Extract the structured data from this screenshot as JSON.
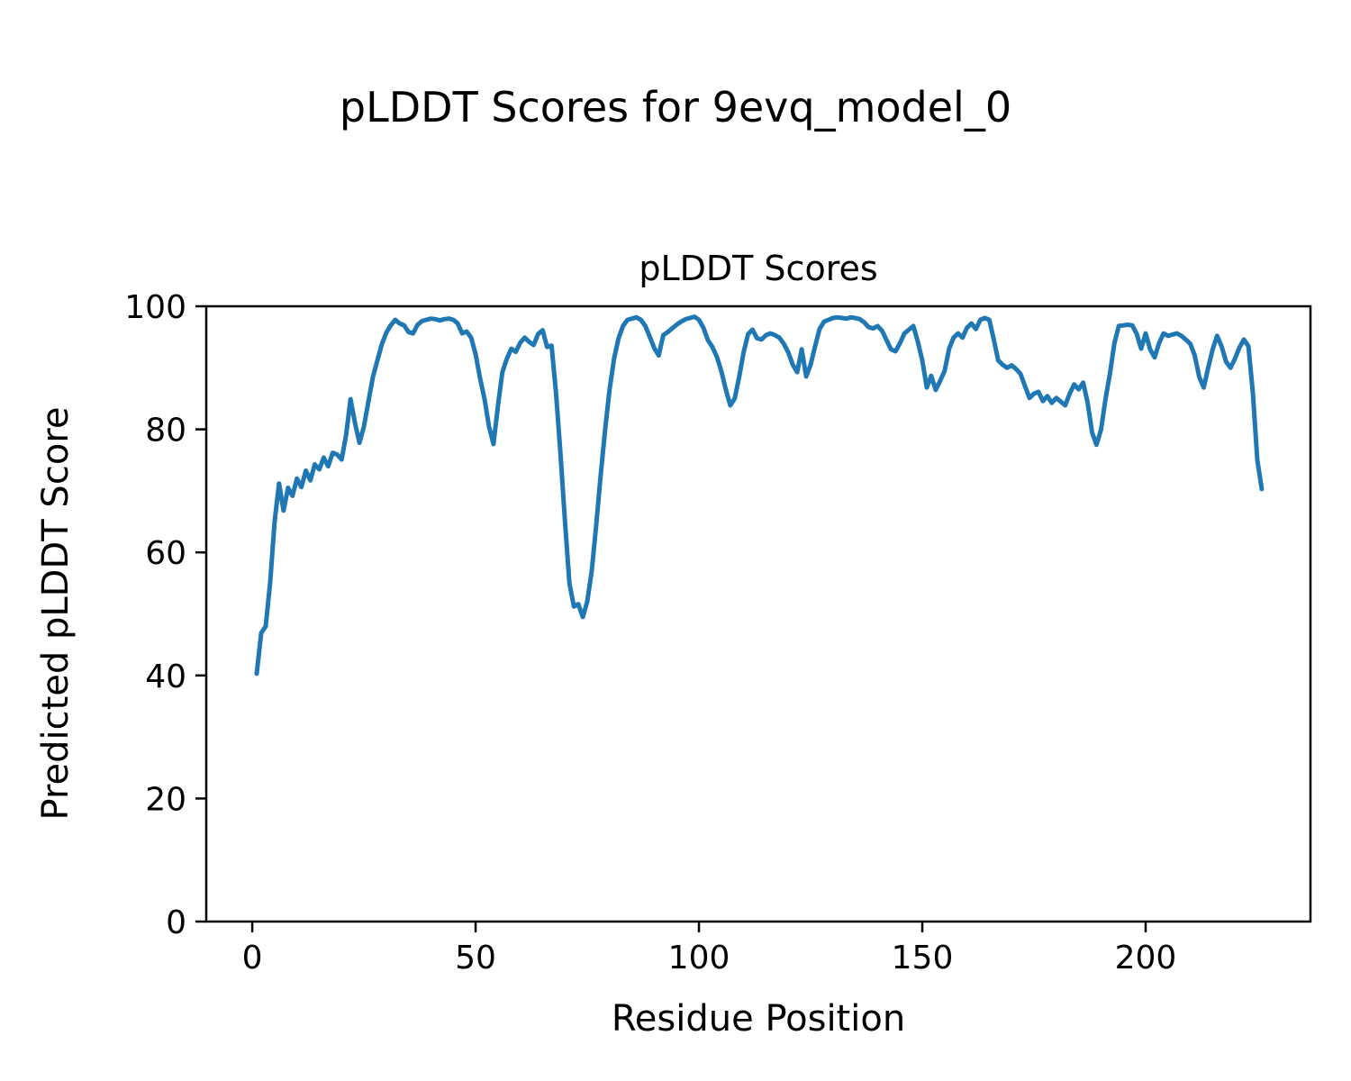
{
  "figure": {
    "suptitle": "pLDDT Scores for 9evq_model_0",
    "axes_title": "pLDDT Scores",
    "xlabel": "Residue Position",
    "ylabel": "Predicted pLDDT Score"
  },
  "chart_data": {
    "type": "line",
    "title": "pLDDT Scores",
    "suptitle": "pLDDT Scores for 9evq_model_0",
    "xlabel": "Residue Position",
    "ylabel": "Predicted pLDDT Score",
    "legend": "none",
    "grid": false,
    "line_color": "#1f77b4",
    "line_width": 5,
    "axis_color": "#000000",
    "xlim": [
      -10.3,
      236.9
    ],
    "ylim": [
      0,
      100
    ],
    "xticks": [
      0,
      50,
      100,
      150,
      200
    ],
    "yticks": [
      0,
      20,
      40,
      60,
      80,
      100
    ],
    "x_start": 1,
    "x_step": 1,
    "values": [
      40.3,
      46.9,
      48.0,
      55.0,
      65.0,
      71.2,
      66.8,
      70.5,
      69.2,
      72.0,
      70.6,
      73.3,
      71.7,
      74.3,
      73.5,
      75.4,
      74.0,
      76.2,
      75.9,
      75.1,
      79.0,
      84.9,
      81.0,
      77.8,
      80.5,
      84.5,
      88.5,
      91.2,
      93.8,
      95.7,
      96.9,
      97.8,
      97.2,
      96.9,
      95.8,
      95.6,
      97.0,
      97.6,
      97.8,
      98.0,
      97.9,
      97.7,
      97.9,
      98.0,
      97.8,
      97.2,
      95.6,
      95.9,
      94.9,
      92.2,
      88.3,
      84.9,
      80.5,
      77.6,
      83.9,
      89.3,
      91.5,
      93.1,
      92.6,
      94.1,
      94.9,
      94.2,
      93.7,
      95.5,
      96.1,
      93.4,
      93.6,
      86.0,
      76.0,
      65.0,
      55.0,
      51.2,
      51.6,
      49.5,
      52.0,
      57.0,
      64.5,
      72.5,
      80.0,
      86.5,
      91.5,
      94.8,
      96.8,
      97.8,
      98.0,
      98.2,
      97.8,
      96.8,
      95.0,
      93.2,
      92.0,
      95.3,
      95.8,
      96.4,
      97.0,
      97.5,
      97.9,
      98.1,
      98.3,
      97.8,
      96.5,
      94.5,
      93.4,
      91.8,
      89.5,
      86.5,
      83.9,
      85.0,
      88.5,
      92.5,
      95.5,
      96.2,
      94.8,
      94.6,
      95.3,
      95.6,
      95.3,
      94.9,
      93.9,
      92.5,
      90.5,
      89.3,
      93.0,
      88.6,
      90.5,
      93.5,
      96.3,
      97.5,
      97.8,
      98.1,
      98.2,
      98.1,
      98.0,
      98.2,
      98.1,
      97.9,
      97.4,
      96.6,
      96.4,
      96.8,
      96.0,
      94.5,
      93.0,
      92.7,
      94.0,
      95.6,
      96.2,
      96.8,
      94.2,
      91.2,
      86.8,
      88.7,
      86.4,
      87.9,
      89.5,
      93.1,
      94.9,
      95.6,
      94.9,
      96.5,
      97.2,
      96.3,
      97.8,
      98.1,
      97.8,
      94.6,
      91.2,
      90.5,
      90.0,
      90.4,
      89.8,
      89.0,
      87.0,
      85.1,
      85.8,
      86.1,
      84.6,
      85.4,
      84.3,
      85.1,
      84.5,
      83.9,
      85.8,
      87.3,
      86.5,
      87.6,
      84.4,
      79.5,
      77.5,
      79.9,
      84.9,
      89.0,
      94.0,
      96.8,
      96.9,
      97.0,
      96.9,
      95.5,
      93.1,
      95.6,
      93.0,
      91.7,
      94.0,
      95.6,
      95.2,
      95.4,
      95.6,
      95.2,
      94.6,
      93.9,
      92.0,
      88.5,
      86.8,
      90.0,
      93.0,
      95.2,
      93.5,
      91.0,
      90.0,
      91.5,
      93.3,
      94.6,
      93.5,
      86.0,
      75.0,
      70.3
    ]
  }
}
